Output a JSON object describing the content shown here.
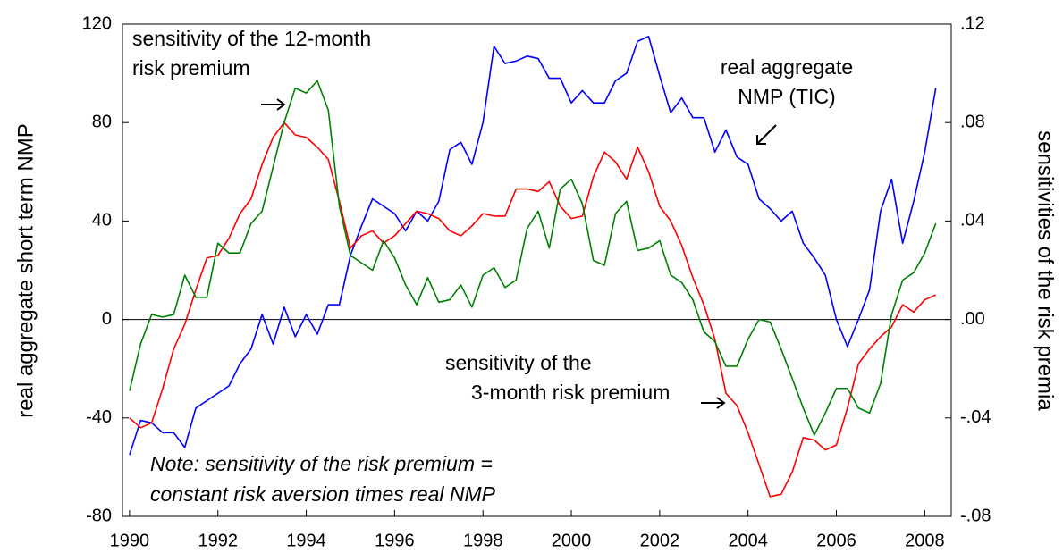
{
  "chart_data": {
    "type": "line",
    "xlabel": null,
    "ylabel": "real aggregate short term NMP",
    "y2label": "sensitivities of the risk premia",
    "x": [
      1990,
      1990.25,
      1990.5,
      1990.75,
      1991,
      1991.25,
      1991.5,
      1991.75,
      1992,
      1992.25,
      1992.5,
      1992.75,
      1993,
      1993.25,
      1993.5,
      1993.75,
      1994,
      1994.25,
      1994.5,
      1994.75,
      1995,
      1995.25,
      1995.5,
      1995.75,
      1996,
      1996.25,
      1996.5,
      1996.75,
      1997,
      1997.25,
      1997.5,
      1997.75,
      1998,
      1998.25,
      1998.5,
      1998.75,
      1999,
      1999.25,
      1999.5,
      1999.75,
      2000,
      2000.25,
      2000.5,
      2000.75,
      2001,
      2001.25,
      2001.5,
      2001.75,
      2002,
      2002.25,
      2002.5,
      2002.75,
      2003,
      2003.25,
      2003.5,
      2003.75,
      2004,
      2004.25,
      2004.5,
      2004.75,
      2005,
      2005.25,
      2005.5,
      2005.75,
      2006,
      2006.25,
      2006.5,
      2006.75,
      2007,
      2007.25,
      2007.5,
      2007.75,
      2008,
      2008.25
    ],
    "xlim": [
      1989.84,
      2008.6
    ],
    "xticks": [
      1990,
      1992,
      1994,
      1996,
      1998,
      2000,
      2002,
      2004,
      2006,
      2008
    ],
    "ylim": [
      -80,
      120
    ],
    "yticks": [
      -80,
      -40,
      0,
      40,
      80,
      120
    ],
    "y2lim": [
      -0.08,
      0.12
    ],
    "y2ticks": [
      {
        "value": -0.08,
        "label": "-.08"
      },
      {
        "value": -0.04,
        "label": "-.04"
      },
      {
        "value": 0,
        "label": ".00"
      },
      {
        "value": 0.04,
        "label": ".04"
      },
      {
        "value": 0.08,
        "label": ".08"
      },
      {
        "value": 0.12,
        "label": ".12"
      }
    ],
    "series": [
      {
        "color": "#0000ff",
        "values": [
          -55,
          -41,
          -42,
          -46,
          -46,
          -52,
          -36,
          -33,
          -30,
          -27,
          -18,
          -12,
          2,
          -10,
          5,
          -7,
          2,
          -6,
          6,
          6,
          26,
          38,
          49,
          46,
          43,
          36,
          44,
          40,
          48,
          69,
          72,
          63,
          80,
          111,
          104,
          105,
          107,
          106,
          98,
          98,
          88,
          93,
          88,
          88,
          97,
          100,
          113,
          115,
          99,
          84,
          90,
          82,
          82,
          68,
          77,
          66,
          63,
          49,
          45,
          40,
          44,
          31,
          25,
          18,
          0,
          -11,
          0,
          12,
          44,
          57,
          31,
          48,
          68,
          94
        ]
      },
      {
        "color": "#ff0000",
        "axis": "y2",
        "values": [
          -0.04,
          -0.044,
          -0.042,
          -0.028,
          -0.012,
          -0.002,
          0.012,
          0.025,
          0.026,
          0.033,
          0.043,
          0.049,
          0.063,
          0.074,
          0.08,
          0.075,
          0.074,
          0.07,
          0.065,
          0.048,
          0.029,
          0.034,
          0.036,
          0.031,
          0.034,
          0.039,
          0.044,
          0.043,
          0.041,
          0.036,
          0.034,
          0.038,
          0.043,
          0.042,
          0.042,
          0.053,
          0.053,
          0.052,
          0.056,
          0.046,
          0.041,
          0.042,
          0.058,
          0.068,
          0.064,
          0.057,
          0.07,
          0.06,
          0.046,
          0.04,
          0.03,
          0.017,
          0.006,
          -0.008,
          -0.03,
          -0.035,
          -0.046,
          -0.059,
          -0.072,
          -0.071,
          -0.062,
          -0.048,
          -0.049,
          -0.053,
          -0.051,
          -0.036,
          -0.018,
          -0.012,
          -0.007,
          -0.003,
          0.006,
          0.003,
          0.008,
          0.01
        ]
      },
      {
        "color": "#008000",
        "axis": "y2",
        "values": [
          -0.029,
          -0.01,
          0.002,
          0.001,
          0.002,
          0.018,
          0.009,
          0.009,
          0.031,
          0.027,
          0.027,
          0.039,
          0.044,
          0.062,
          0.08,
          0.094,
          0.092,
          0.097,
          0.085,
          0.046,
          0.026,
          0.023,
          0.02,
          0.032,
          0.025,
          0.014,
          0.006,
          0.017,
          0.007,
          0.008,
          0.014,
          0.005,
          0.018,
          0.021,
          0.013,
          0.016,
          0.037,
          0.044,
          0.029,
          0.053,
          0.057,
          0.047,
          0.024,
          0.022,
          0.043,
          0.048,
          0.028,
          0.029,
          0.032,
          0.018,
          0.015,
          0.008,
          -0.005,
          -0.009,
          -0.019,
          -0.019,
          -0.008,
          0,
          -0.001,
          -0.012,
          -0.024,
          -0.036,
          -0.047,
          -0.038,
          -0.028,
          -0.028,
          -0.036,
          -0.038,
          -0.026,
          0.002,
          0.016,
          0.019,
          0.027,
          0.039
        ]
      }
    ],
    "annotations": [
      {
        "lines": [
          "sensitivity of the 12-month",
          "risk premium"
        ]
      },
      {
        "lines": [
          "real aggregate",
          "NMP (TIC)"
        ]
      },
      {
        "lines": [
          "sensitivity of the",
          "3-month risk premium"
        ]
      },
      {
        "lines": [
          "Note: sensitivity of the risk premium =",
          "constant risk aversion times real NMP"
        ]
      }
    ]
  }
}
